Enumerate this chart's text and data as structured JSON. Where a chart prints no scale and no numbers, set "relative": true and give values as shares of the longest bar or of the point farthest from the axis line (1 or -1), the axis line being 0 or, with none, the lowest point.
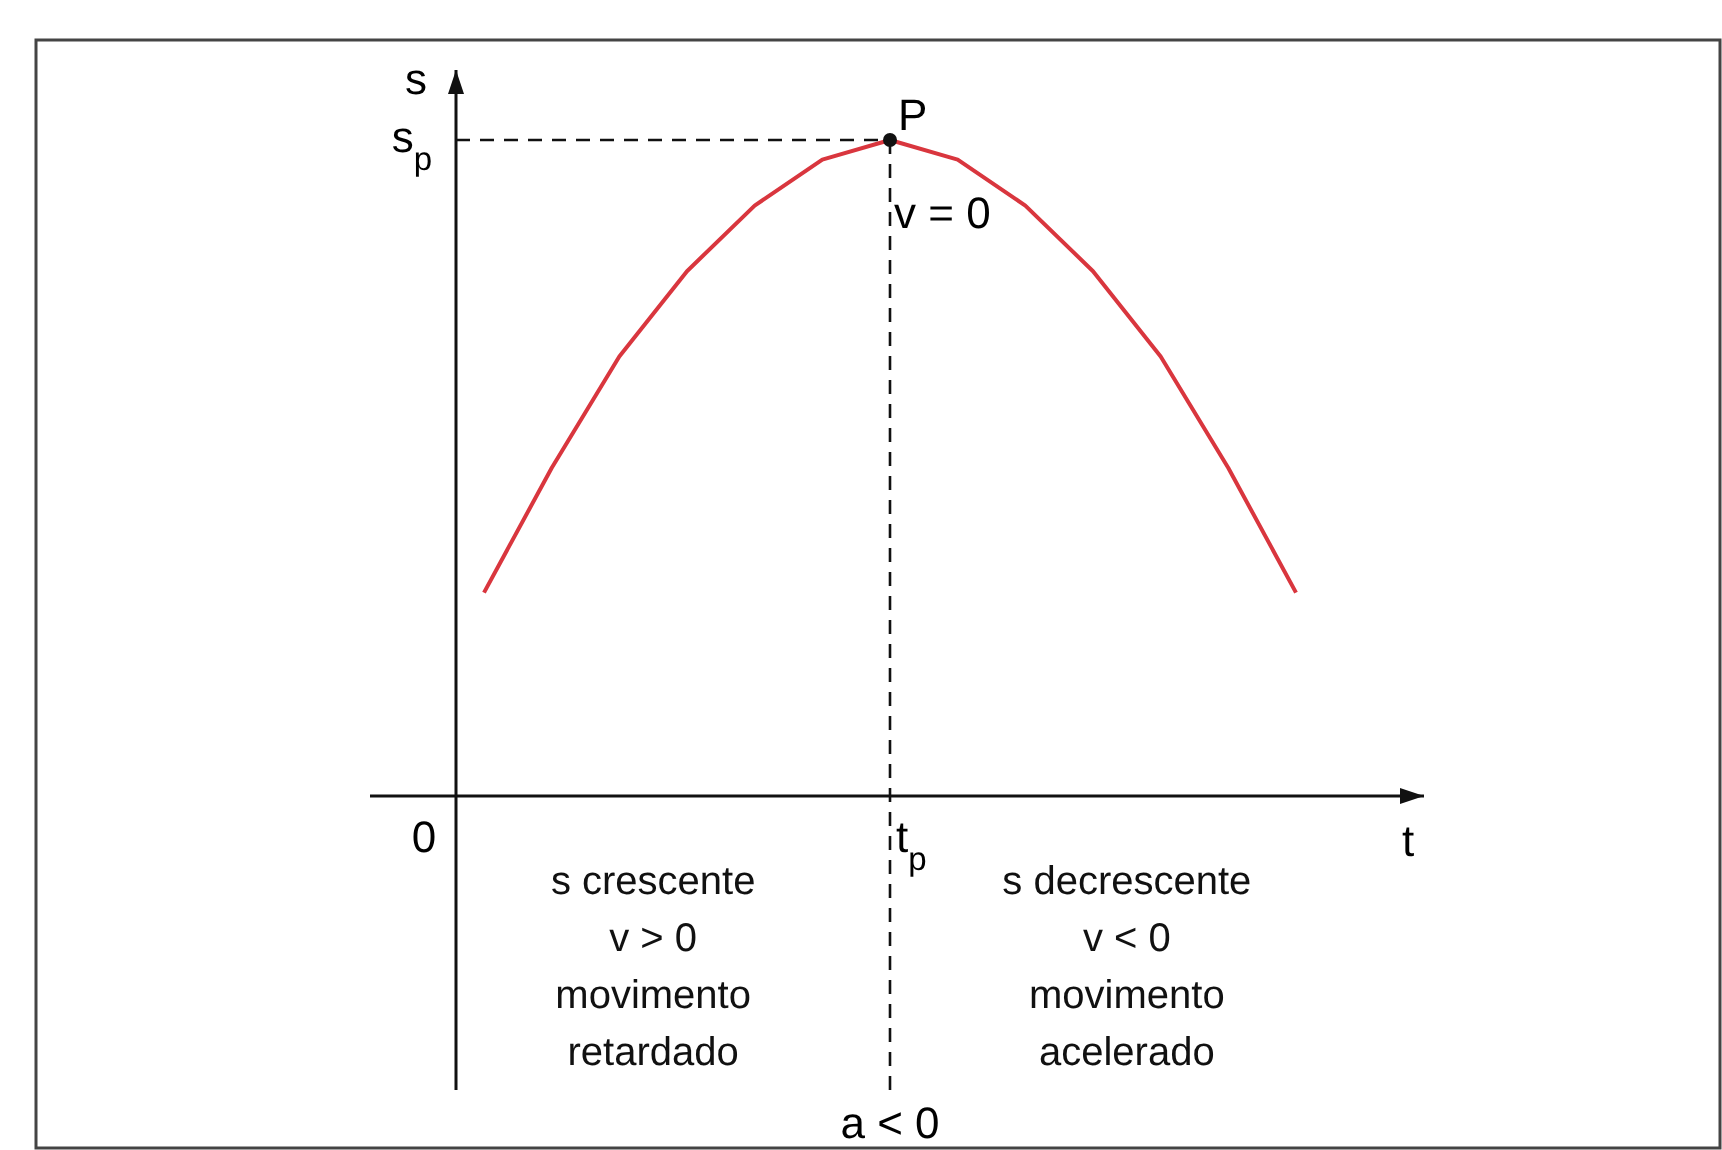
{
  "chart_data": {
    "type": "line",
    "relative": true,
    "xlabel": "t",
    "ylabel": "s",
    "categories": [
      null,
      null,
      null,
      null,
      null,
      null,
      null,
      null,
      null,
      null,
      null,
      null,
      null
    ],
    "series": [
      {
        "color": "#d9363e",
        "values": [
          0.31,
          0.5,
          0.67,
          0.8,
          0.9,
          0.97,
          1,
          0.97,
          0.9,
          0.8,
          0.67,
          0.5,
          0.31
        ]
      }
    ],
    "ref_lines": [
      {
        "axis": "y",
        "value": 1,
        "label": "s$_{p}$",
        "line_style": "dashed"
      },
      {
        "axis": "x",
        "label": "t$_{p}$",
        "line_style": "dashed"
      }
    ],
    "annotations": [
      {
        "text": "P",
        "y": 1
      },
      "v = 0",
      "0",
      "a < 0",
      "s crescente\nv > 0\nmovimento\nretardado",
      "s decrescente\nv < 0\nmovimento\nacelerado"
    ],
    "grid": false,
    "line_style": "solid"
  }
}
